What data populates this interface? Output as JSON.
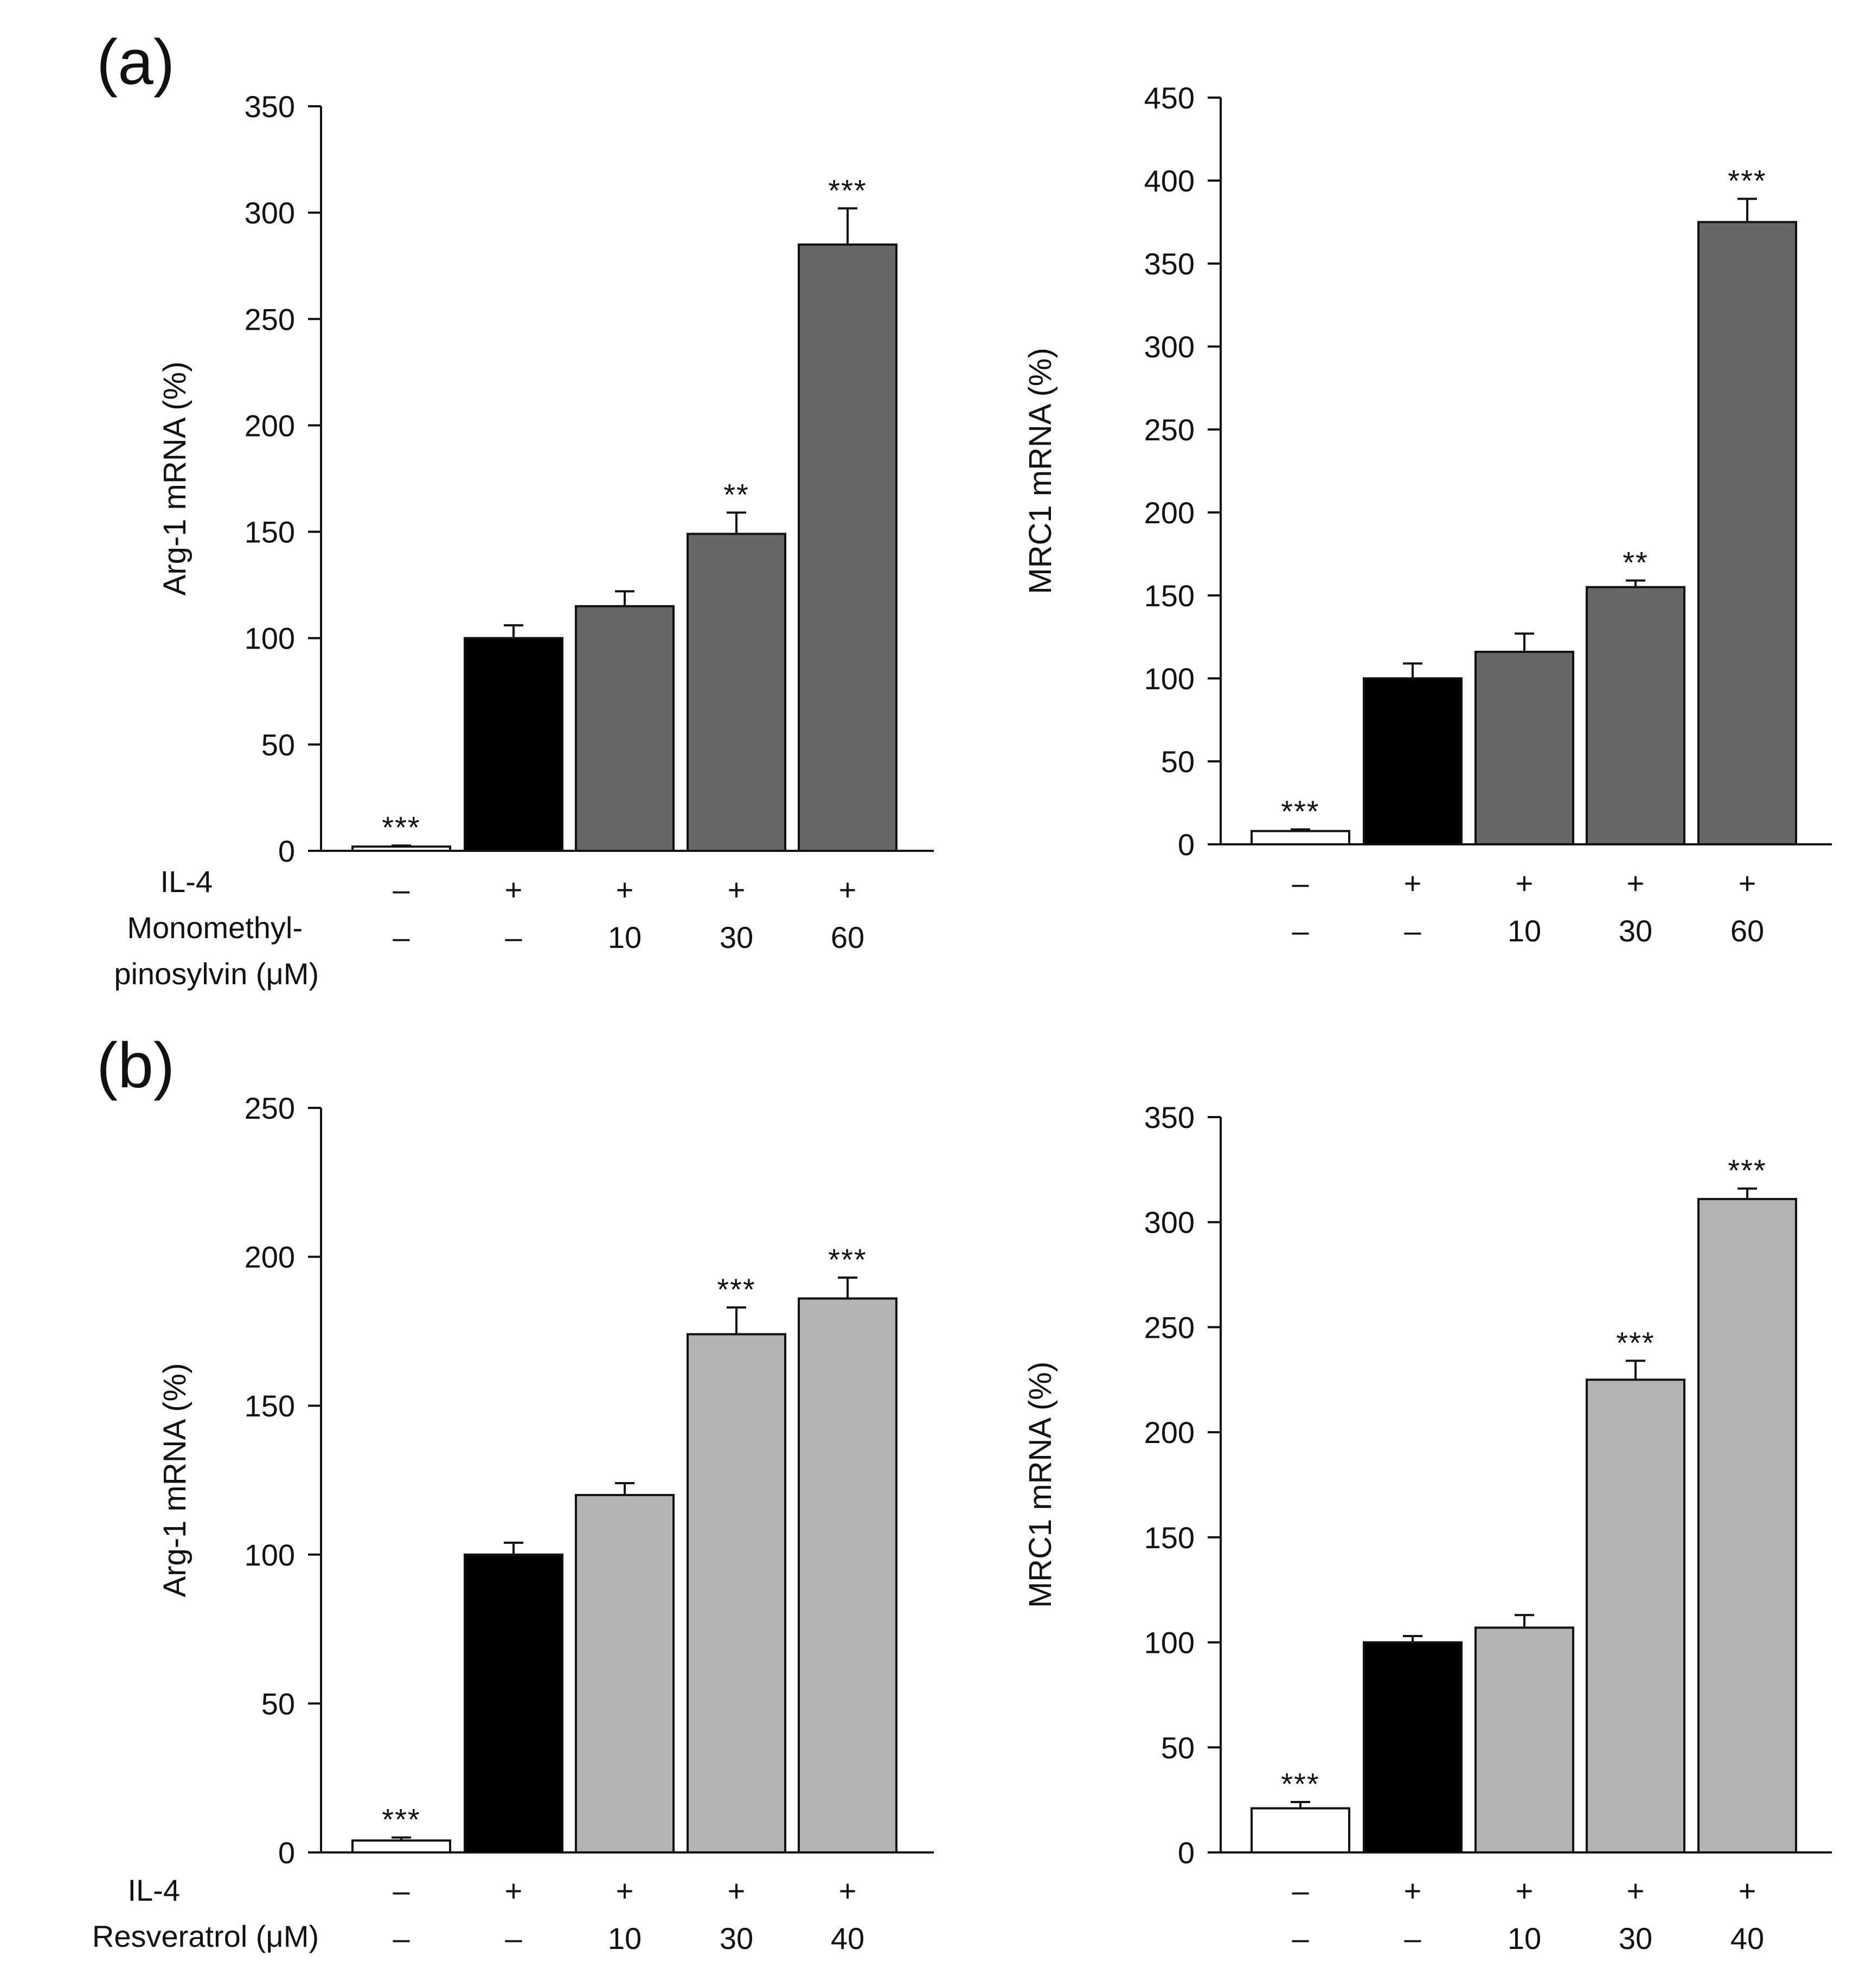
{
  "figure": {
    "rows": [
      {
        "panel_label": "(a)",
        "row_labels": [
          "IL-4",
          "Monomethyl-",
          "pinosylvin (μM)"
        ]
      },
      {
        "panel_label": "(b)",
        "row_labels": [
          "IL-4",
          "Resveratrol (μM)"
        ]
      }
    ]
  },
  "chart_data": [
    {
      "type": "bar",
      "panel": "(a)",
      "ylabel": "Arg-1 mRNA (%)",
      "ylim": [
        0,
        350
      ],
      "yticks": [
        0,
        50,
        100,
        150,
        200,
        250,
        300,
        350
      ],
      "categories": [
        {
          "il4": "–",
          "dose": "–"
        },
        {
          "il4": "+",
          "dose": "–"
        },
        {
          "il4": "+",
          "dose": "10"
        },
        {
          "il4": "+",
          "dose": "30"
        },
        {
          "il4": "+",
          "dose": "60"
        }
      ],
      "values": [
        2,
        100,
        115,
        149,
        285
      ],
      "errors": [
        0.5,
        6,
        7,
        10,
        17
      ],
      "significance": [
        "***",
        "",
        "",
        "**",
        "***"
      ],
      "colors": [
        "#ffffff",
        "#000000",
        "#666666",
        "#666666",
        "#666666"
      ]
    },
    {
      "type": "bar",
      "panel": "(a)",
      "ylabel": "MRC1 mRNA (%)",
      "ylim": [
        0,
        450
      ],
      "yticks": [
        0,
        50,
        100,
        150,
        200,
        250,
        300,
        350,
        400,
        450
      ],
      "categories": [
        {
          "il4": "–",
          "dose": "–"
        },
        {
          "il4": "+",
          "dose": "–"
        },
        {
          "il4": "+",
          "dose": "10"
        },
        {
          "il4": "+",
          "dose": "30"
        },
        {
          "il4": "+",
          "dose": "60"
        }
      ],
      "values": [
        8,
        100,
        116,
        155,
        375
      ],
      "errors": [
        1,
        9,
        11,
        4,
        14
      ],
      "significance": [
        "***",
        "",
        "",
        "**",
        "***"
      ],
      "colors": [
        "#ffffff",
        "#000000",
        "#666666",
        "#666666",
        "#666666"
      ]
    },
    {
      "type": "bar",
      "panel": "(b)",
      "ylabel": "Arg-1 mRNA (%)",
      "ylim": [
        0,
        250
      ],
      "yticks": [
        0,
        50,
        100,
        150,
        200,
        250
      ],
      "categories": [
        {
          "il4": "–",
          "dose": "–"
        },
        {
          "il4": "+",
          "dose": "–"
        },
        {
          "il4": "+",
          "dose": "10"
        },
        {
          "il4": "+",
          "dose": "30"
        },
        {
          "il4": "+",
          "dose": "40"
        }
      ],
      "values": [
        4,
        100,
        120,
        174,
        186
      ],
      "errors": [
        1,
        4,
        4,
        9,
        7
      ],
      "significance": [
        "***",
        "",
        "",
        "***",
        "***"
      ],
      "colors": [
        "#ffffff",
        "#000000",
        "#b3b3b3",
        "#b3b3b3",
        "#b3b3b3"
      ]
    },
    {
      "type": "bar",
      "panel": "(b)",
      "ylabel": "MRC1 mRNA (%)",
      "ylim": [
        0,
        350
      ],
      "yticks": [
        0,
        50,
        100,
        150,
        200,
        250,
        300,
        350
      ],
      "categories": [
        {
          "il4": "–",
          "dose": "–"
        },
        {
          "il4": "+",
          "dose": "–"
        },
        {
          "il4": "+",
          "dose": "10"
        },
        {
          "il4": "+",
          "dose": "30"
        },
        {
          "il4": "+",
          "dose": "40"
        }
      ],
      "values": [
        21,
        100,
        107,
        225,
        311
      ],
      "errors": [
        3,
        3,
        6,
        9,
        5
      ],
      "significance": [
        "***",
        "",
        "",
        "***",
        "***"
      ],
      "colors": [
        "#ffffff",
        "#000000",
        "#b3b3b3",
        "#b3b3b3",
        "#b3b3b3"
      ]
    }
  ]
}
